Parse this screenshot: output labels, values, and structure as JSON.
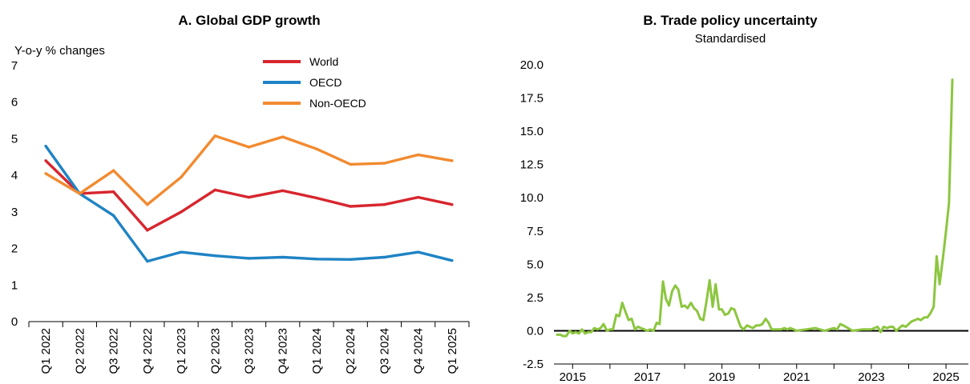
{
  "chart_data": [
    {
      "type": "line",
      "title": "A. Global GDP growth",
      "ylabel": "Y-o-y % changes",
      "ylim": [
        0,
        7
      ],
      "yticks": [
        0,
        1,
        2,
        3,
        4,
        5,
        6,
        7
      ],
      "categories": [
        "Q1 2022",
        "Q2 2022",
        "Q3 2022",
        "Q4 2022",
        "Q1 2023",
        "Q2 2023",
        "Q3 2023",
        "Q4 2023",
        "Q1 2024",
        "Q2 2024",
        "Q3 2024",
        "Q4 2024",
        "Q1 2025"
      ],
      "legend_position": "top-center",
      "series": [
        {
          "name": "World",
          "color": "#d7262e",
          "values": [
            4.4,
            3.5,
            3.55,
            2.5,
            3.0,
            3.6,
            3.4,
            3.58,
            3.38,
            3.15,
            3.2,
            3.4,
            3.2
          ]
        },
        {
          "name": "OECD",
          "color": "#1f83c4",
          "values": [
            4.8,
            3.5,
            2.9,
            1.65,
            1.9,
            1.8,
            1.73,
            1.76,
            1.71,
            1.7,
            1.76,
            1.9,
            1.67
          ]
        },
        {
          "name": "Non-OECD",
          "color": "#f28a30",
          "values": [
            4.05,
            3.5,
            4.13,
            3.2,
            3.95,
            5.08,
            4.77,
            5.05,
            4.72,
            4.3,
            4.33,
            4.56,
            4.4
          ]
        }
      ]
    },
    {
      "type": "line",
      "title": "B. Trade policy uncertainty",
      "subtitle": "Standardised",
      "ylim": [
        -2.5,
        20
      ],
      "yticks": [
        "-2.5",
        "0.0",
        "2.5",
        "5.0",
        "7.5",
        "10.0",
        "12.5",
        "15.0",
        "17.5",
        "20.0"
      ],
      "xticks": [
        "2015",
        "2017",
        "2019",
        "2021",
        "2023",
        "2025"
      ],
      "xlim": [
        2014.5,
        2025.6
      ],
      "series": [
        {
          "color": "#8cc63f",
          "x": [
            2014.58,
            2014.67,
            2014.75,
            2014.83,
            2014.92,
            2015.0,
            2015.08,
            2015.17,
            2015.25,
            2015.33,
            2015.42,
            2015.5,
            2015.58,
            2015.67,
            2015.75,
            2015.83,
            2015.92,
            2016.0,
            2016.08,
            2016.17,
            2016.25,
            2016.33,
            2016.42,
            2016.5,
            2016.58,
            2016.67,
            2016.75,
            2016.83,
            2016.92,
            2017.0,
            2017.08,
            2017.17,
            2017.25,
            2017.33,
            2017.42,
            2017.5,
            2017.58,
            2017.67,
            2017.75,
            2017.83,
            2017.92,
            2018.0,
            2018.08,
            2018.17,
            2018.25,
            2018.33,
            2018.42,
            2018.5,
            2018.58,
            2018.67,
            2018.75,
            2018.83,
            2018.92,
            2019.0,
            2019.08,
            2019.17,
            2019.25,
            2019.33,
            2019.42,
            2019.5,
            2019.58,
            2019.67,
            2019.75,
            2019.83,
            2019.92,
            2020.0,
            2020.08,
            2020.17,
            2020.25,
            2020.33,
            2020.42,
            2020.5,
            2020.58,
            2020.67,
            2020.75,
            2020.83,
            2020.92,
            2021.0,
            2021.25,
            2021.5,
            2021.75,
            2022.0,
            2022.08,
            2022.17,
            2022.25,
            2022.5,
            2022.75,
            2023.0,
            2023.08,
            2023.17,
            2023.25,
            2023.33,
            2023.42,
            2023.5,
            2023.58,
            2023.67,
            2023.75,
            2023.83,
            2023.92,
            2024.0,
            2024.08,
            2024.17,
            2024.25,
            2024.33,
            2024.42,
            2024.5,
            2024.58,
            2024.67,
            2024.75,
            2024.83,
            2024.92,
            2025.0,
            2025.08,
            2025.17
          ],
          "values": [
            -0.3,
            -0.3,
            -0.4,
            -0.4,
            0.0,
            -0.2,
            -0.1,
            -0.2,
            0.1,
            -0.2,
            -0.1,
            -0.1,
            0.2,
            0.1,
            0.2,
            0.5,
            0.0,
            0.1,
            0.1,
            1.2,
            1.1,
            2.1,
            1.4,
            0.8,
            0.9,
            0.1,
            0.3,
            0.2,
            0.1,
            0.0,
            0.1,
            0.0,
            0.6,
            0.5,
            3.7,
            2.4,
            1.9,
            3.0,
            3.4,
            3.1,
            1.8,
            1.9,
            1.7,
            2.1,
            1.7,
            1.5,
            0.9,
            0.8,
            2.1,
            3.8,
            1.8,
            3.5,
            1.6,
            1.6,
            1.2,
            1.3,
            1.7,
            1.6,
            0.9,
            0.3,
            0.1,
            0.4,
            0.3,
            0.2,
            0.4,
            0.4,
            0.5,
            0.9,
            0.6,
            0.1,
            0.1,
            0.1,
            0.1,
            0.2,
            0.1,
            0.2,
            0.1,
            0.0,
            0.1,
            0.2,
            0.0,
            0.2,
            0.1,
            0.5,
            0.4,
            0.0,
            0.1,
            0.1,
            0.2,
            0.3,
            -0.1,
            0.3,
            0.2,
            0.3,
            0.3,
            0.0,
            0.2,
            0.4,
            0.3,
            0.5,
            0.7,
            0.8,
            0.9,
            0.8,
            1.0,
            1.0,
            1.3,
            1.8,
            5.6,
            3.5,
            5.5,
            7.5,
            9.6,
            18.9
          ]
        }
      ]
    }
  ]
}
